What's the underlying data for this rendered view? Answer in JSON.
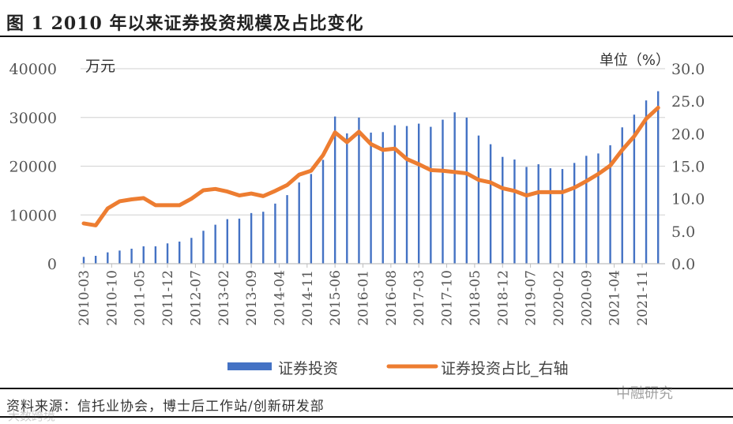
{
  "figure_title": "图 1 2010 年以来证券投资规模及占比变化",
  "source": "资料来源：信托业协会，博士后工作站/创新研发部",
  "watermarks": [
    "中融研究",
    "大数跨境"
  ],
  "chart_data": {
    "type": "bar+line",
    "left_unit": "万元",
    "right_unit": "单位（%）",
    "left_ylim": [
      0,
      40000
    ],
    "left_ticks": [
      "0",
      "10000",
      "20000",
      "30000",
      "40000"
    ],
    "right_ylim": [
      0,
      30
    ],
    "right_ticks": [
      "0.0",
      "5.0",
      "10.0",
      "15.0",
      "20.0",
      "25.0",
      "30.0"
    ],
    "x_tick_labels": [
      "2010-03",
      "2010-10",
      "2011-05",
      "2011-12",
      "2012-07",
      "2013-02",
      "2013-09",
      "2014-04",
      "2014-11",
      "2015-06",
      "2016-01",
      "2016-08",
      "2017-03",
      "2017-10",
      "2018-05",
      "2018-12",
      "2019-07",
      "2020-02",
      "2020-09",
      "2021-04",
      "2021-11"
    ],
    "grid": true,
    "legend_position": "bottom",
    "colors": {
      "bar": "#4472c4",
      "line": "#ed7d31"
    },
    "x": [
      "2010-03",
      "2010-06",
      "2010-09",
      "2010-12",
      "2011-03",
      "2011-06",
      "2011-09",
      "2011-12",
      "2012-03",
      "2012-06",
      "2012-09",
      "2012-12",
      "2013-03",
      "2013-06",
      "2013-09",
      "2013-12",
      "2014-03",
      "2014-06",
      "2014-09",
      "2014-12",
      "2015-03",
      "2015-06",
      "2015-09",
      "2015-12",
      "2016-03",
      "2016-06",
      "2016-09",
      "2016-12",
      "2017-03",
      "2017-06",
      "2017-09",
      "2017-12",
      "2018-03",
      "2018-06",
      "2018-09",
      "2018-12",
      "2019-03",
      "2019-06",
      "2019-09",
      "2019-12",
      "2020-03",
      "2020-06",
      "2020-09",
      "2020-12",
      "2021-03",
      "2021-06",
      "2021-09",
      "2021-12",
      "2022-03"
    ],
    "series": [
      {
        "name": "证券投资",
        "type": "bar",
        "axis": "left",
        "values": [
          1400,
          1620,
          2330,
          2700,
          3080,
          3570,
          3570,
          4170,
          4540,
          5300,
          6760,
          8000,
          9140,
          9250,
          10390,
          10660,
          12330,
          14070,
          16660,
          18400,
          21300,
          30190,
          26730,
          29970,
          26890,
          27000,
          28400,
          28240,
          28730,
          28080,
          29540,
          31050,
          29970,
          26290,
          24510,
          21910,
          21370,
          19850,
          20400,
          19580,
          19420,
          20670,
          22130,
          22610,
          24290,
          27970,
          30570,
          33490,
          35380
        ]
      },
      {
        "name": "证券投资占比_右轴",
        "type": "line",
        "axis": "right",
        "values": [
          6.2,
          5.9,
          8.5,
          9.6,
          9.9,
          10.1,
          9.0,
          9.0,
          9.0,
          10.0,
          11.3,
          11.5,
          11.1,
          10.5,
          10.8,
          10.4,
          11.2,
          12.1,
          13.7,
          14.3,
          16.7,
          20.2,
          18.7,
          20.3,
          18.4,
          17.5,
          17.7,
          16.1,
          15.3,
          14.4,
          14.3,
          14.1,
          13.9,
          12.9,
          12.5,
          11.6,
          11.2,
          10.5,
          11.0,
          11.0,
          11.0,
          11.7,
          12.7,
          13.8,
          15.1,
          17.5,
          19.6,
          22.3,
          24.0
        ]
      }
    ]
  }
}
